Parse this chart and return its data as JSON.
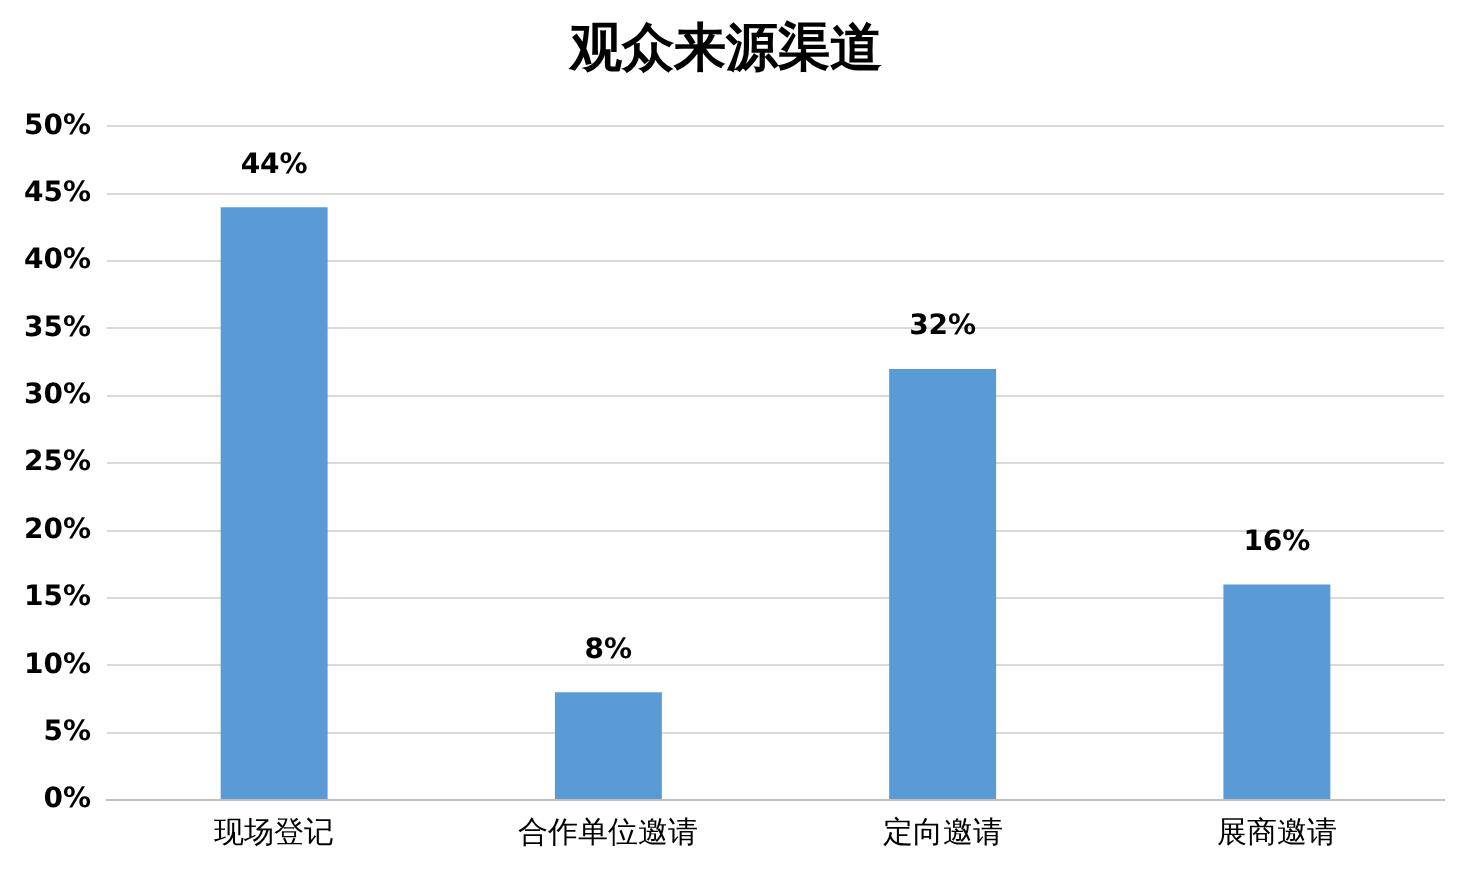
{
  "chart_data": {
    "type": "bar",
    "title": "观众来源渠道",
    "categories": [
      "现场登记",
      "合作单位邀请",
      "定向邀请",
      "展商邀请"
    ],
    "values": [
      44,
      8,
      32,
      16
    ],
    "value_labels": [
      "44%",
      "8%",
      "32%",
      "16%"
    ],
    "color": "#5b9bd5",
    "ylim": [
      0,
      50
    ],
    "yticks": [
      {
        "value": 0,
        "label": "0%"
      },
      {
        "value": 5,
        "label": "5%"
      },
      {
        "value": 10,
        "label": "10%"
      },
      {
        "value": 15,
        "label": "15%"
      },
      {
        "value": 20,
        "label": "20%"
      },
      {
        "value": 25,
        "label": "25%"
      },
      {
        "value": 30,
        "label": "30%"
      },
      {
        "value": 35,
        "label": "35%"
      },
      {
        "value": 40,
        "label": "40%"
      },
      {
        "value": 45,
        "label": "45%"
      },
      {
        "value": 50,
        "label": "50%"
      }
    ],
    "grid": "y",
    "legend": false
  }
}
